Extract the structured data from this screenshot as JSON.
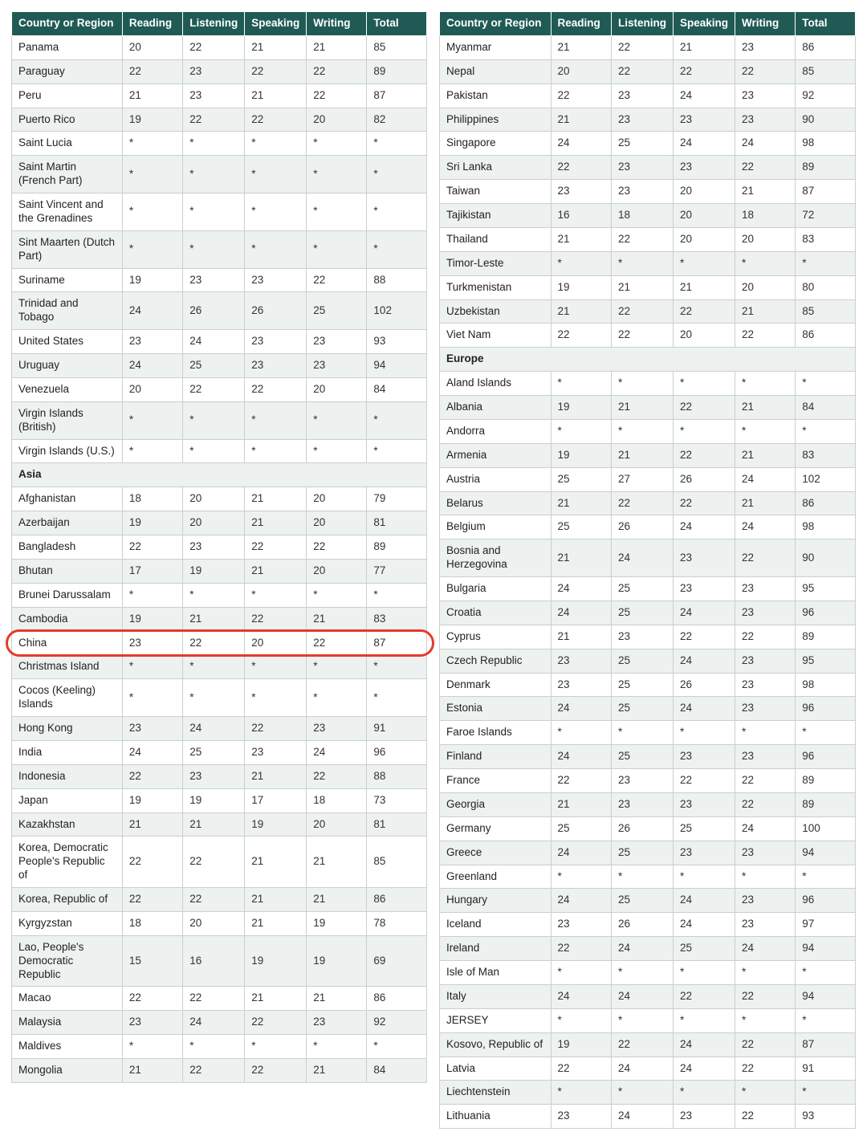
{
  "colors": {
    "header_bg": "#1f5b54",
    "header_text": "#ffffff",
    "row_alt_bg": "#edf1f0",
    "border": "#c9d0cd",
    "highlight_border": "#e63a2a",
    "page_bg": "#ffffff"
  },
  "typography": {
    "font_family": "Segoe UI, Myriad Pro, Arial, sans-serif",
    "body_size_pt": 10,
    "header_weight": 700
  },
  "columns": [
    "Country or Region",
    "Reading",
    "Listening",
    "Speaking",
    "Writing",
    "Total"
  ],
  "highlight_country": "China",
  "left_table": [
    {
      "type": "row",
      "cells": [
        "Panama",
        "20",
        "22",
        "21",
        "21",
        "85"
      ]
    },
    {
      "type": "row",
      "cells": [
        "Paraguay",
        "22",
        "23",
        "22",
        "22",
        "89"
      ]
    },
    {
      "type": "row",
      "cells": [
        "Peru",
        "21",
        "23",
        "21",
        "22",
        "87"
      ]
    },
    {
      "type": "row",
      "cells": [
        "Puerto Rico",
        "19",
        "22",
        "22",
        "20",
        "82"
      ]
    },
    {
      "type": "row",
      "cells": [
        "Saint Lucia",
        "*",
        "*",
        "*",
        "*",
        "*"
      ]
    },
    {
      "type": "row",
      "cells": [
        "Saint Martin (French Part)",
        "*",
        "*",
        "*",
        "*",
        "*"
      ]
    },
    {
      "type": "row",
      "cells": [
        "Saint Vincent and the Grenadines",
        "*",
        "*",
        "*",
        "*",
        "*"
      ]
    },
    {
      "type": "row",
      "cells": [
        "Sint Maarten (Dutch Part)",
        "*",
        "*",
        "*",
        "*",
        "*"
      ]
    },
    {
      "type": "row",
      "cells": [
        "Suriname",
        "19",
        "23",
        "23",
        "22",
        "88"
      ]
    },
    {
      "type": "row",
      "cells": [
        "Trinidad and Tobago",
        "24",
        "26",
        "26",
        "25",
        "102"
      ]
    },
    {
      "type": "row",
      "cells": [
        "United States",
        "23",
        "24",
        "23",
        "23",
        "93"
      ]
    },
    {
      "type": "row",
      "cells": [
        "Uruguay",
        "24",
        "25",
        "23",
        "23",
        "94"
      ]
    },
    {
      "type": "row",
      "cells": [
        "Venezuela",
        "20",
        "22",
        "22",
        "20",
        "84"
      ]
    },
    {
      "type": "row",
      "cells": [
        "Virgin Islands (British)",
        "*",
        "*",
        "*",
        "*",
        "*"
      ]
    },
    {
      "type": "row",
      "cells": [
        "Virgin Islands (U.S.)",
        "*",
        "*",
        "*",
        "*",
        "*"
      ]
    },
    {
      "type": "section",
      "label": "Asia"
    },
    {
      "type": "row",
      "cells": [
        "Afghanistan",
        "18",
        "20",
        "21",
        "20",
        "79"
      ]
    },
    {
      "type": "row",
      "cells": [
        "Azerbaijan",
        "19",
        "20",
        "21",
        "20",
        "81"
      ]
    },
    {
      "type": "row",
      "cells": [
        "Bangladesh",
        "22",
        "23",
        "22",
        "22",
        "89"
      ]
    },
    {
      "type": "row",
      "cells": [
        "Bhutan",
        "17",
        "19",
        "21",
        "20",
        "77"
      ]
    },
    {
      "type": "row",
      "cells": [
        "Brunei Darussalam",
        "*",
        "*",
        "*",
        "*",
        "*"
      ]
    },
    {
      "type": "row",
      "cells": [
        "Cambodia",
        "19",
        "21",
        "22",
        "21",
        "83"
      ]
    },
    {
      "type": "row",
      "cells": [
        "China",
        "23",
        "22",
        "20",
        "22",
        "87"
      ]
    },
    {
      "type": "row",
      "cells": [
        "Christmas Island",
        "*",
        "*",
        "*",
        "*",
        "*"
      ]
    },
    {
      "type": "row",
      "cells": [
        "Cocos (Keeling) Islands",
        "*",
        "*",
        "*",
        "*",
        "*"
      ]
    },
    {
      "type": "row",
      "cells": [
        "Hong Kong",
        "23",
        "24",
        "22",
        "23",
        "91"
      ]
    },
    {
      "type": "row",
      "cells": [
        "India",
        "24",
        "25",
        "23",
        "24",
        "96"
      ]
    },
    {
      "type": "row",
      "cells": [
        "Indonesia",
        "22",
        "23",
        "21",
        "22",
        "88"
      ]
    },
    {
      "type": "row",
      "cells": [
        "Japan",
        "19",
        "19",
        "17",
        "18",
        "73"
      ]
    },
    {
      "type": "row",
      "cells": [
        "Kazakhstan",
        "21",
        "21",
        "19",
        "20",
        "81"
      ]
    },
    {
      "type": "row",
      "cells": [
        "Korea, Democratic People's Republic of",
        "22",
        "22",
        "21",
        "21",
        "85"
      ]
    },
    {
      "type": "row",
      "cells": [
        "Korea, Republic of",
        "22",
        "22",
        "21",
        "21",
        "86"
      ]
    },
    {
      "type": "row",
      "cells": [
        "Kyrgyzstan",
        "18",
        "20",
        "21",
        "19",
        "78"
      ]
    },
    {
      "type": "row",
      "cells": [
        "Lao, People's Democratic Republic",
        "15",
        "16",
        "19",
        "19",
        "69"
      ]
    },
    {
      "type": "row",
      "cells": [
        "Macao",
        "22",
        "22",
        "21",
        "21",
        "86"
      ]
    },
    {
      "type": "row",
      "cells": [
        "Malaysia",
        "23",
        "24",
        "22",
        "23",
        "92"
      ]
    },
    {
      "type": "row",
      "cells": [
        "Maldives",
        "*",
        "*",
        "*",
        "*",
        "*"
      ]
    },
    {
      "type": "row",
      "cells": [
        "Mongolia",
        "21",
        "22",
        "22",
        "21",
        "84"
      ]
    }
  ],
  "right_table": [
    {
      "type": "row",
      "cells": [
        "Myanmar",
        "21",
        "22",
        "21",
        "23",
        "86"
      ]
    },
    {
      "type": "row",
      "cells": [
        "Nepal",
        "20",
        "22",
        "22",
        "22",
        "85"
      ]
    },
    {
      "type": "row",
      "cells": [
        "Pakistan",
        "22",
        "23",
        "24",
        "23",
        "92"
      ]
    },
    {
      "type": "row",
      "cells": [
        "Philippines",
        "21",
        "23",
        "23",
        "23",
        "90"
      ]
    },
    {
      "type": "row",
      "cells": [
        "Singapore",
        "24",
        "25",
        "24",
        "24",
        "98"
      ]
    },
    {
      "type": "row",
      "cells": [
        "Sri Lanka",
        "22",
        "23",
        "23",
        "22",
        "89"
      ]
    },
    {
      "type": "row",
      "cells": [
        "Taiwan",
        "23",
        "23",
        "20",
        "21",
        "87"
      ]
    },
    {
      "type": "row",
      "cells": [
        "Tajikistan",
        "16",
        "18",
        "20",
        "18",
        "72"
      ]
    },
    {
      "type": "row",
      "cells": [
        "Thailand",
        "21",
        "22",
        "20",
        "20",
        "83"
      ]
    },
    {
      "type": "row",
      "cells": [
        "Timor-Leste",
        "*",
        "*",
        "*",
        "*",
        "*"
      ]
    },
    {
      "type": "row",
      "cells": [
        "Turkmenistan",
        "19",
        "21",
        "21",
        "20",
        "80"
      ]
    },
    {
      "type": "row",
      "cells": [
        "Uzbekistan",
        "21",
        "22",
        "22",
        "21",
        "85"
      ]
    },
    {
      "type": "row",
      "cells": [
        "Viet Nam",
        "22",
        "22",
        "20",
        "22",
        "86"
      ]
    },
    {
      "type": "section",
      "label": "Europe"
    },
    {
      "type": "row",
      "cells": [
        "Aland Islands",
        "*",
        "*",
        "*",
        "*",
        "*"
      ]
    },
    {
      "type": "row",
      "cells": [
        "Albania",
        "19",
        "21",
        "22",
        "21",
        "84"
      ]
    },
    {
      "type": "row",
      "cells": [
        "Andorra",
        "*",
        "*",
        "*",
        "*",
        "*"
      ]
    },
    {
      "type": "row",
      "cells": [
        "Armenia",
        "19",
        "21",
        "22",
        "21",
        "83"
      ]
    },
    {
      "type": "row",
      "cells": [
        "Austria",
        "25",
        "27",
        "26",
        "24",
        "102"
      ]
    },
    {
      "type": "row",
      "cells": [
        "Belarus",
        "21",
        "22",
        "22",
        "21",
        "86"
      ]
    },
    {
      "type": "row",
      "cells": [
        "Belgium",
        "25",
        "26",
        "24",
        "24",
        "98"
      ]
    },
    {
      "type": "row",
      "cells": [
        "Bosnia and Herzegovina",
        "21",
        "24",
        "23",
        "22",
        "90"
      ]
    },
    {
      "type": "row",
      "cells": [
        "Bulgaria",
        "24",
        "25",
        "23",
        "23",
        "95"
      ]
    },
    {
      "type": "row",
      "cells": [
        "Croatia",
        "24",
        "25",
        "24",
        "23",
        "96"
      ]
    },
    {
      "type": "row",
      "cells": [
        "Cyprus",
        "21",
        "23",
        "22",
        "22",
        "89"
      ]
    },
    {
      "type": "row",
      "cells": [
        "Czech Republic",
        "23",
        "25",
        "24",
        "23",
        "95"
      ]
    },
    {
      "type": "row",
      "cells": [
        "Denmark",
        "23",
        "25",
        "26",
        "23",
        "98"
      ]
    },
    {
      "type": "row",
      "cells": [
        "Estonia",
        "24",
        "25",
        "24",
        "23",
        "96"
      ]
    },
    {
      "type": "row",
      "cells": [
        "Faroe Islands",
        "*",
        "*",
        "*",
        "*",
        "*"
      ]
    },
    {
      "type": "row",
      "cells": [
        "Finland",
        "24",
        "25",
        "23",
        "23",
        "96"
      ]
    },
    {
      "type": "row",
      "cells": [
        "France",
        "22",
        "23",
        "22",
        "22",
        "89"
      ]
    },
    {
      "type": "row",
      "cells": [
        "Georgia",
        "21",
        "23",
        "23",
        "22",
        "89"
      ]
    },
    {
      "type": "row",
      "cells": [
        "Germany",
        "25",
        "26",
        "25",
        "24",
        "100"
      ]
    },
    {
      "type": "row",
      "cells": [
        "Greece",
        "24",
        "25",
        "23",
        "23",
        "94"
      ]
    },
    {
      "type": "row",
      "cells": [
        "Greenland",
        "*",
        "*",
        "*",
        "*",
        "*"
      ]
    },
    {
      "type": "row",
      "cells": [
        "Hungary",
        "24",
        "25",
        "24",
        "23",
        "96"
      ]
    },
    {
      "type": "row",
      "cells": [
        "Iceland",
        "23",
        "26",
        "24",
        "23",
        "97"
      ]
    },
    {
      "type": "row",
      "cells": [
        "Ireland",
        "22",
        "24",
        "25",
        "24",
        "94"
      ]
    },
    {
      "type": "row",
      "cells": [
        "Isle of Man",
        "*",
        "*",
        "*",
        "*",
        "*"
      ]
    },
    {
      "type": "row",
      "cells": [
        "Italy",
        "24",
        "24",
        "22",
        "22",
        "94"
      ]
    },
    {
      "type": "row",
      "cells": [
        "JERSEY",
        "*",
        "*",
        "*",
        "*",
        "*"
      ]
    },
    {
      "type": "row",
      "cells": [
        "Kosovo, Republic of",
        "19",
        "22",
        "24",
        "22",
        "87"
      ]
    },
    {
      "type": "row",
      "cells": [
        "Latvia",
        "22",
        "24",
        "24",
        "22",
        "91"
      ]
    },
    {
      "type": "row",
      "cells": [
        "Liechtenstein",
        "*",
        "*",
        "*",
        "*",
        "*"
      ]
    },
    {
      "type": "row",
      "cells": [
        "Lithuania",
        "23",
        "24",
        "23",
        "22",
        "93"
      ]
    }
  ]
}
